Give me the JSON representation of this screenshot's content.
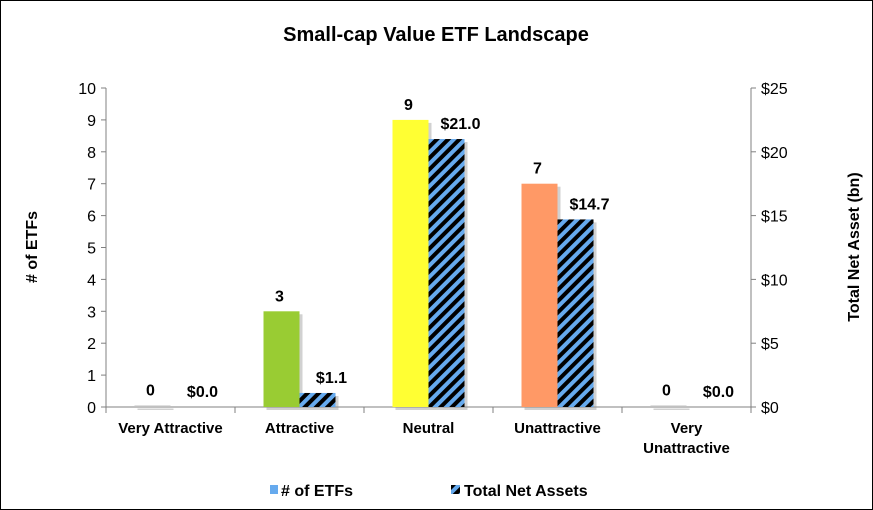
{
  "chart_data": {
    "type": "bar",
    "title": "Small-cap Value ETF Landscape",
    "categories": [
      [
        "Very Attractive"
      ],
      [
        "Attractive"
      ],
      [
        "Neutral"
      ],
      [
        "Unattractive"
      ],
      [
        "Very",
        "Unattractive"
      ]
    ],
    "series": [
      {
        "name": "# of ETFs",
        "axis": "left",
        "values": [
          0,
          3,
          9,
          7,
          0
        ],
        "labels": [
          "0",
          "3",
          "9",
          "7",
          "0"
        ],
        "colors": [
          "#C0C0C0",
          "#99CC33",
          "#FFFF33",
          "#FF9966",
          "#C0C0C0"
        ],
        "legend_color": "#66AAEE"
      },
      {
        "name": "Total Net Assets",
        "axis": "right",
        "values": [
          0.0,
          1.1,
          21.0,
          14.7,
          0.0
        ],
        "labels": [
          "$0.0",
          "$1.1",
          "$21.0",
          "$14.7",
          "$0.0"
        ],
        "pattern": "diagonal-stripes",
        "colors": [
          "#000000",
          "#66AAEE"
        ]
      }
    ],
    "y_left": {
      "label": "# of ETFs",
      "min": 0,
      "max": 10,
      "ticks": [
        "0",
        "1",
        "2",
        "3",
        "4",
        "5",
        "6",
        "7",
        "8",
        "9",
        "10"
      ]
    },
    "y_right": {
      "label": "Total Net Asset (bn)",
      "min": 0,
      "max": 25,
      "ticks": [
        "$0",
        "$5",
        "$10",
        "$15",
        "$20",
        "$25"
      ]
    },
    "grid": false,
    "legend": "bottom"
  }
}
